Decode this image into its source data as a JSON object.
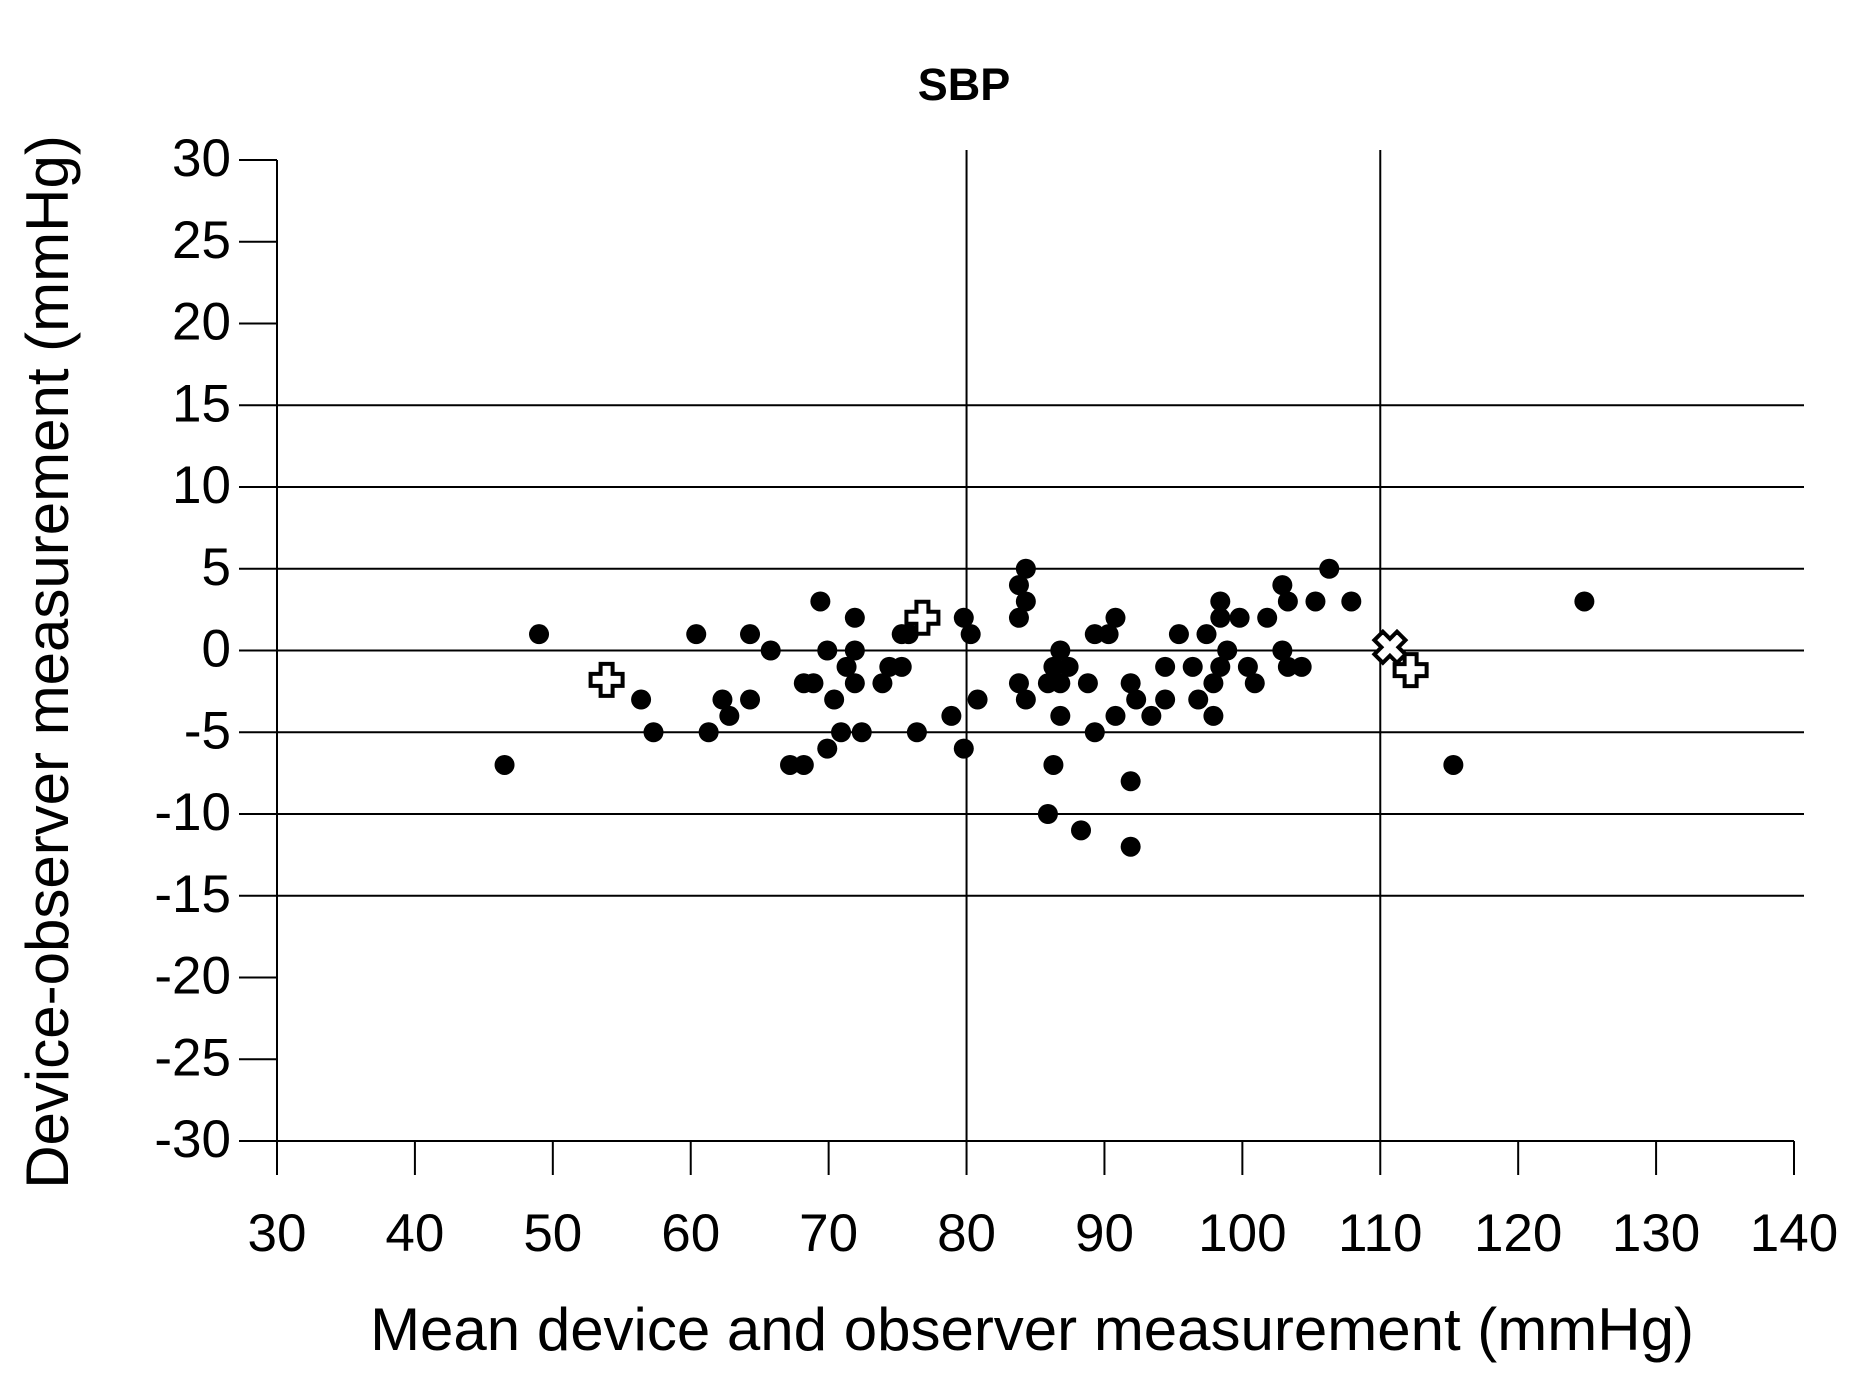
{
  "chart_data": {
    "type": "scatter",
    "title": "SBP",
    "x_label": "Mean device and observer measurement (mmHg)",
    "y_label": "Device-observer measurement (mmHg)",
    "xlim": [
      30,
      140
    ],
    "ylim": [
      -30,
      30
    ],
    "xticks": [
      30,
      40,
      50,
      60,
      70,
      80,
      90,
      100,
      110,
      120,
      130,
      140
    ],
    "yticks": [
      30,
      25,
      20,
      15,
      10,
      5,
      0,
      -5,
      -10,
      -15,
      -20,
      -25,
      -30
    ],
    "hlines": [
      15,
      10,
      5,
      0,
      -5,
      -10,
      -15
    ],
    "vlines": [
      80,
      110
    ],
    "series": [
      {
        "marker": "circle",
        "color": "#000000",
        "x": [
          46.5,
          49,
          56.4,
          57.3,
          60.4,
          61.3,
          62.3,
          62.8,
          64.3,
          64.3,
          65.8,
          67.2,
          68.2,
          68.2,
          68.9,
          69.4,
          69.9,
          69.9,
          70.4,
          70.9,
          71.3,
          71.9,
          71.9,
          71.9,
          72.4,
          73.9,
          74.4,
          75.3,
          75.3,
          75.8,
          76.4,
          78.9,
          79.8,
          79.8,
          80.3,
          80.8,
          83.8,
          83.8,
          83.8,
          84.3,
          84.3,
          84.3,
          85.9,
          85.9,
          86.3,
          86.3,
          86.8,
          86.8,
          86.8,
          87.4,
          88.3,
          88.8,
          89.3,
          89.3,
          90.3,
          90.8,
          90.8,
          91.9,
          91.9,
          91.9,
          92.3,
          93.4,
          94.4,
          94.4,
          95.4,
          96.4,
          96.8,
          97.4,
          97.9,
          97.9,
          98.4,
          98.4,
          98.4,
          98.9,
          99.8,
          100.4,
          100.9,
          101.8,
          102.9,
          102.9,
          103.3,
          103.3,
          104.3,
          105.3,
          106.3,
          107.9,
          115.3,
          124.8
        ],
        "values": [
          -7,
          1,
          -3,
          -5,
          1,
          -5,
          -3,
          -4,
          1,
          -3,
          0,
          -7,
          -7,
          -2,
          -2,
          3,
          0,
          -6,
          -3,
          -5,
          -1,
          2,
          0,
          -2,
          -5,
          -2,
          -1,
          -1,
          1,
          1,
          -5,
          -4,
          2,
          -6,
          1,
          -3,
          4,
          2,
          -2,
          5,
          3,
          -3,
          -10,
          -2,
          -1,
          -7,
          0,
          -2,
          -4,
          -1,
          -11,
          -2,
          1,
          -5,
          1,
          2,
          -4,
          -2,
          -8,
          -12,
          -3,
          -4,
          -1,
          -3,
          1,
          -1,
          -3,
          1,
          -2,
          -4,
          3,
          2,
          -1,
          0,
          2,
          -1,
          -2,
          2,
          4,
          0,
          3,
          -1,
          -1,
          3,
          5,
          3,
          -7,
          3
        ]
      },
      {
        "marker": "plus",
        "color": "#ffffff",
        "x": [
          53.9,
          76.8,
          112.2
        ],
        "values": [
          -1.8,
          2,
          -1.2
        ]
      },
      {
        "marker": "cross",
        "color": "#ffffff",
        "x": [
          110.7
        ],
        "values": [
          0.2
        ]
      }
    ]
  }
}
